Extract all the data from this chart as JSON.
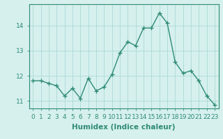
{
  "x": [
    0,
    1,
    2,
    3,
    4,
    5,
    6,
    7,
    8,
    9,
    10,
    11,
    12,
    13,
    14,
    15,
    16,
    17,
    18,
    19,
    20,
    21,
    22,
    23
  ],
  "y": [
    11.8,
    11.8,
    11.7,
    11.6,
    11.2,
    11.5,
    11.1,
    11.9,
    11.4,
    11.55,
    12.05,
    12.9,
    13.35,
    13.2,
    13.9,
    13.9,
    14.5,
    14.1,
    12.55,
    12.1,
    12.2,
    11.8,
    11.2,
    10.85
  ],
  "line_color": "#2e8b74",
  "marker_color": "#2e8b74",
  "bg_color": "#d6f0ee",
  "grid_color": "#aadad6",
  "xlabel": "Humidex (Indice chaleur)",
  "xlim": [
    -0.5,
    23.5
  ],
  "ylim": [
    10.7,
    14.85
  ],
  "yticks": [
    11,
    12,
    13,
    14
  ],
  "xticks": [
    0,
    1,
    2,
    3,
    4,
    5,
    6,
    7,
    8,
    9,
    10,
    11,
    12,
    13,
    14,
    15,
    16,
    17,
    18,
    19,
    20,
    21,
    22,
    23
  ],
  "xlabel_fontsize": 7.5,
  "tick_fontsize": 6.5,
  "line_width": 1.0,
  "marker_size": 4
}
